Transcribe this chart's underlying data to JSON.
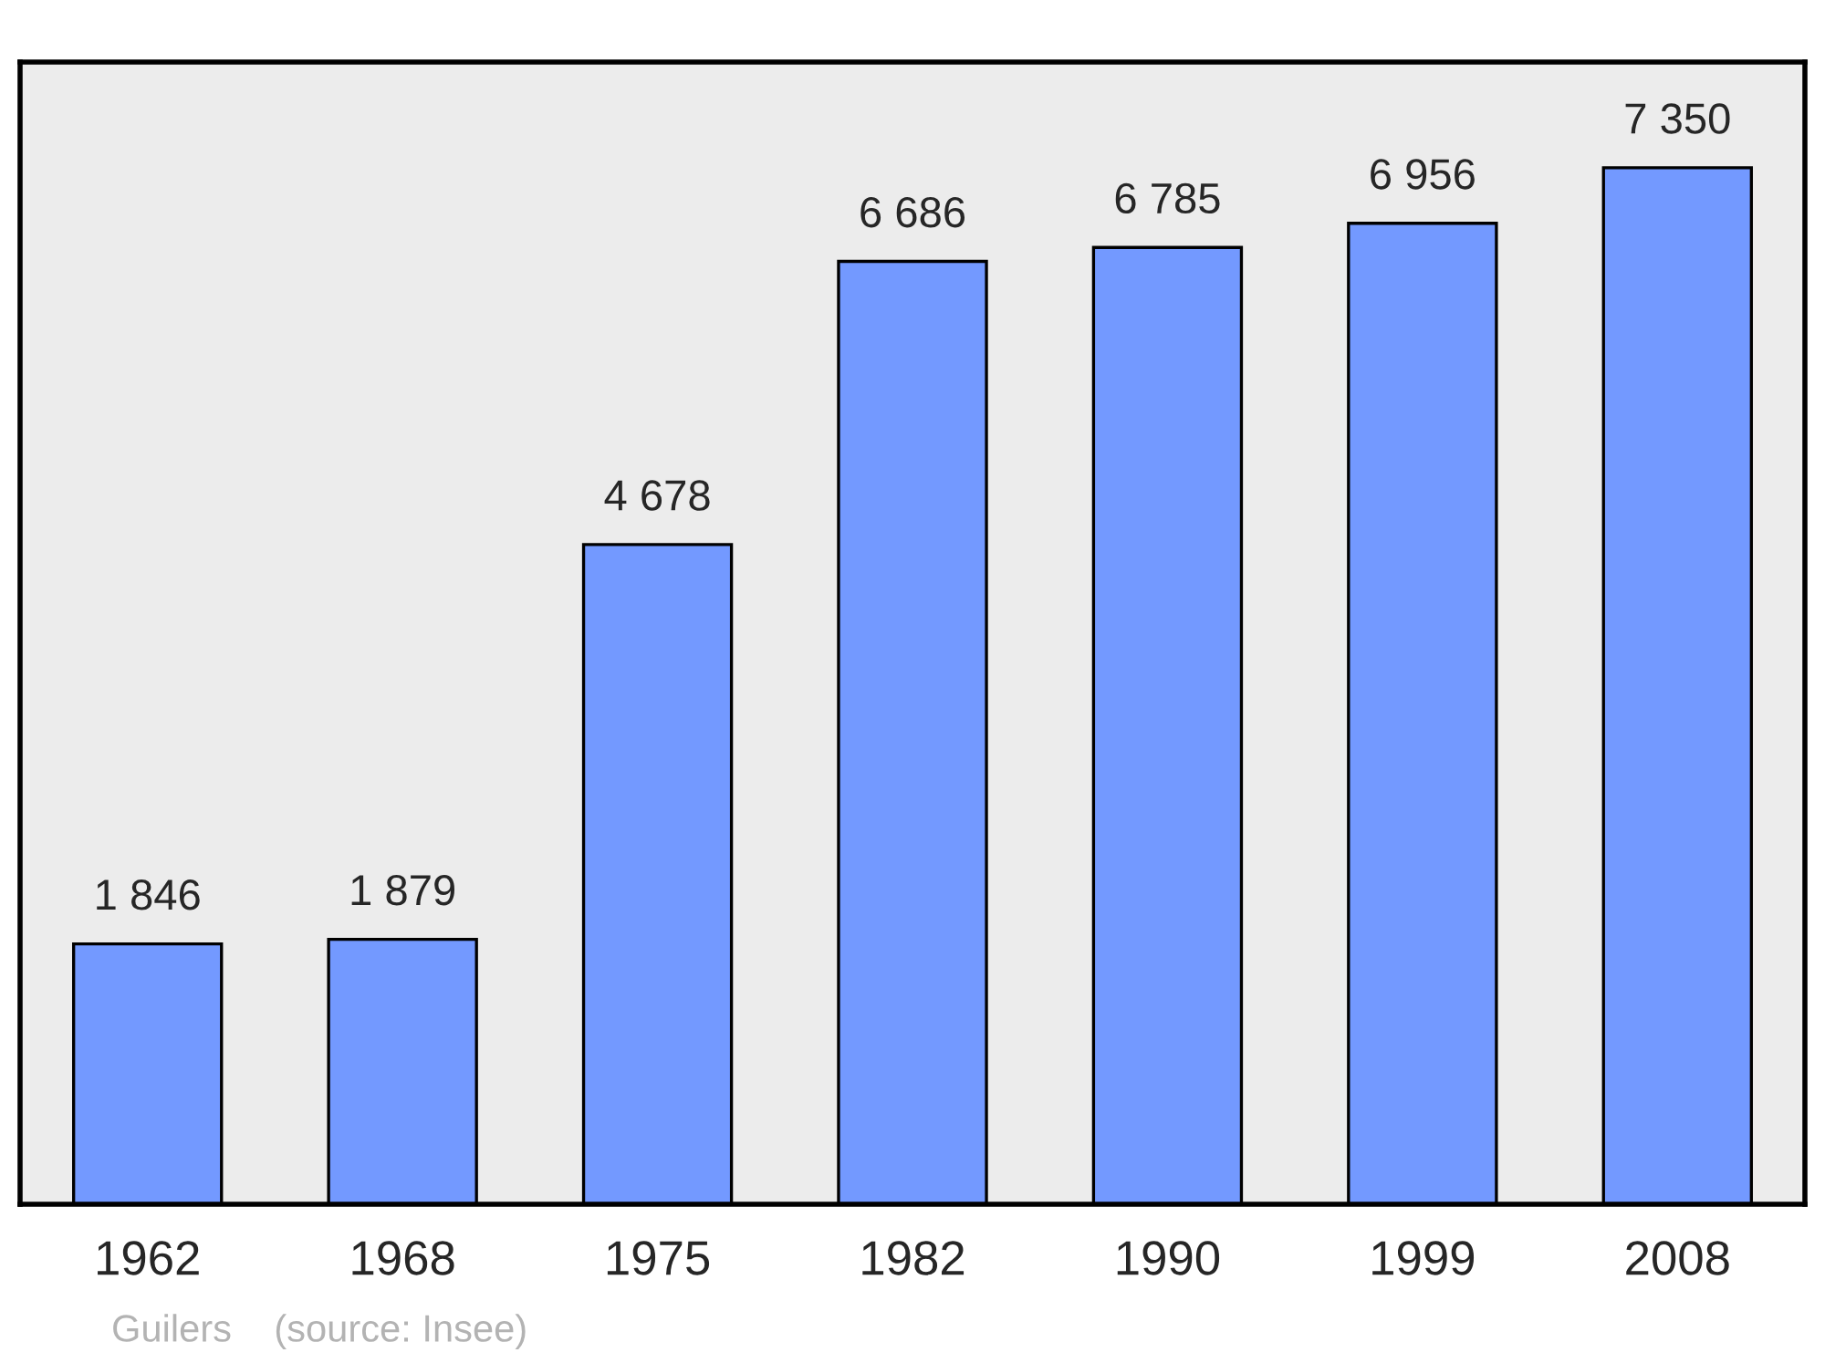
{
  "chart_data": {
    "type": "bar",
    "categories": [
      "1962",
      "1968",
      "1975",
      "1982",
      "1990",
      "1999",
      "2008"
    ],
    "values": [
      1846,
      1879,
      4678,
      6686,
      6785,
      6956,
      7350
    ],
    "value_labels": [
      "1 846",
      "1 879",
      "4 678",
      "6 686",
      "6 785",
      "6 956",
      "7 350"
    ],
    "color": "#7399ff",
    "annotations": [
      "Guilers    (source: Insee)"
    ],
    "grid": false
  }
}
